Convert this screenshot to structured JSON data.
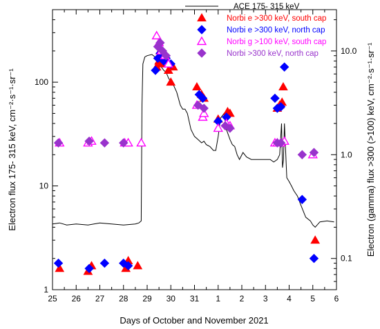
{
  "chart_data": {
    "type": "scatter",
    "xlabel": "Days of October and November 2021",
    "ylabel_left": "Electron flux  175- 315 keV, cm⁻²·s⁻¹·sr⁻¹",
    "ylabel_right": "Electron  (gamma) flux  >300 (>100) keV, cm⁻²·s⁻¹·sr⁻¹",
    "x_tick_labels": [
      "25",
      "26",
      "27",
      "28",
      "29",
      "30",
      "31",
      "1",
      "2",
      "3",
      "4",
      "5",
      "6"
    ],
    "xlim": [
      0,
      12
    ],
    "y_left": {
      "scale": "log",
      "lim": [
        1,
        500
      ],
      "ticks": [
        1,
        10,
        100
      ],
      "tick_labels": [
        "1",
        "10",
        "100"
      ]
    },
    "y_right": {
      "scale": "log",
      "lim": [
        0.05,
        25
      ],
      "ticks": [
        0.1,
        1.0,
        10.0
      ],
      "tick_labels": [
        "0.1",
        "1.0",
        "10.0"
      ]
    },
    "legend_position": "top-right",
    "series": [
      {
        "name": "ACE  175- 315 keV",
        "kind": "line",
        "axis": "left",
        "color": "#000000",
        "x": [
          0,
          0.3,
          0.6,
          1.0,
          1.5,
          2.0,
          2.5,
          3.0,
          3.5,
          3.65,
          3.75,
          3.78,
          3.82,
          3.9,
          4.0,
          4.2,
          4.4,
          4.6,
          4.7,
          4.8,
          4.9,
          5.0,
          5.1,
          5.25,
          5.4,
          5.5,
          5.6,
          5.7,
          5.85,
          6.0,
          6.15,
          6.3,
          6.4,
          6.5,
          6.65,
          6.8,
          6.9,
          7.0,
          7.1,
          7.25,
          7.35,
          7.5,
          7.6,
          7.7,
          7.8,
          7.9,
          8.05,
          8.2,
          8.4,
          8.6,
          8.8,
          9.0,
          9.2,
          9.35,
          9.5,
          9.6,
          9.68,
          9.72,
          9.76,
          9.8,
          9.9,
          10.0,
          10.1,
          10.2,
          10.35,
          10.5,
          10.7,
          10.9,
          11.0,
          11.1,
          11.3,
          11.6,
          11.9
        ],
        "y": [
          4.3,
          4.4,
          4.2,
          4.3,
          4.2,
          4.4,
          4.3,
          4.2,
          4.3,
          4.4,
          4.6,
          60,
          150,
          175,
          180,
          185,
          170,
          140,
          130,
          125,
          110,
          100,
          95,
          80,
          60,
          55,
          55,
          50,
          35,
          30,
          28,
          26,
          27,
          25,
          24,
          22,
          22,
          30,
          45,
          50,
          35,
          28,
          25,
          24,
          20,
          18,
          21,
          19,
          18,
          18,
          18,
          18,
          18,
          17,
          18,
          20,
          40,
          15,
          18,
          40,
          12,
          11,
          10,
          9,
          8,
          6.5,
          5,
          4.6,
          4.2,
          4.0,
          4.5,
          4.6,
          4.5
        ]
      },
      {
        "name": "Norbi  e >300 keV, south cap",
        "kind": "marker",
        "marker": "triangle-filled",
        "axis": "right",
        "color": "#ff0000",
        "x": [
          0.3,
          1.5,
          1.65,
          3.1,
          3.2,
          3.6,
          4.4,
          4.5,
          4.55,
          4.6,
          4.7,
          4.9,
          5.0,
          5.1,
          6.1,
          6.3,
          6.4,
          7.0,
          7.4,
          7.5,
          9.5,
          9.6,
          9.7,
          9.75,
          11.1
        ],
        "y": [
          0.08,
          0.075,
          0.085,
          0.08,
          0.095,
          0.085,
          7,
          8,
          10,
          7.5,
          9,
          6.5,
          5,
          7,
          4.5,
          3.8,
          3.5,
          2.2,
          2.6,
          2.5,
          2.8,
          3.0,
          3.2,
          4.5,
          0.15
        ]
      },
      {
        "name": "Norbi  e >300 keV, north cap",
        "kind": "marker",
        "marker": "diamond-filled",
        "axis": "right",
        "color": "#0000ff",
        "x": [
          0.25,
          1.55,
          2.2,
          3.0,
          3.2,
          4.35,
          4.45,
          4.55,
          4.7,
          4.8,
          5.0,
          6.2,
          6.35,
          7.0,
          7.35,
          9.4,
          9.5,
          9.65,
          9.8,
          10.55,
          11.05
        ],
        "y": [
          0.09,
          0.08,
          0.09,
          0.09,
          0.085,
          6.5,
          8.5,
          9.5,
          8,
          8.5,
          7.5,
          3.8,
          3.5,
          2.1,
          2.3,
          3.5,
          2.8,
          2.9,
          7,
          0.37,
          0.1
        ]
      },
      {
        "name": "Norbi  g >100 keV, south cap",
        "kind": "marker",
        "marker": "triangle-open",
        "axis": "right",
        "color": "#ff00ff",
        "x": [
          0.3,
          1.5,
          1.65,
          3.05,
          3.2,
          3.75,
          4.4,
          4.5,
          4.6,
          4.75,
          4.9,
          6.1,
          6.35,
          6.4,
          7.0,
          7.35,
          7.5,
          9.4,
          9.5,
          9.65,
          9.8,
          11.0
        ],
        "y": [
          1.3,
          1.3,
          1.35,
          1.3,
          1.3,
          1.3,
          14,
          12,
          10,
          9,
          7.5,
          3.0,
          2.3,
          2.5,
          1.8,
          2.0,
          1.9,
          1.3,
          1.3,
          1.3,
          1.35,
          1.0
        ]
      },
      {
        "name": "Norbi  >300 keV, north cap",
        "kind": "marker",
        "marker": "diamond-filled",
        "axis": "right",
        "color": "#9933cc",
        "x": [
          0.25,
          1.55,
          2.2,
          3.0,
          4.45,
          4.55,
          4.65,
          4.8,
          6.15,
          6.4,
          7.3,
          7.5,
          9.5,
          9.65,
          10.55,
          11.05
        ],
        "y": [
          1.3,
          1.35,
          1.3,
          1.3,
          11,
          12,
          10,
          9,
          3.0,
          2.8,
          1.9,
          1.8,
          1.3,
          1.3,
          1.0,
          1.05
        ]
      }
    ]
  }
}
